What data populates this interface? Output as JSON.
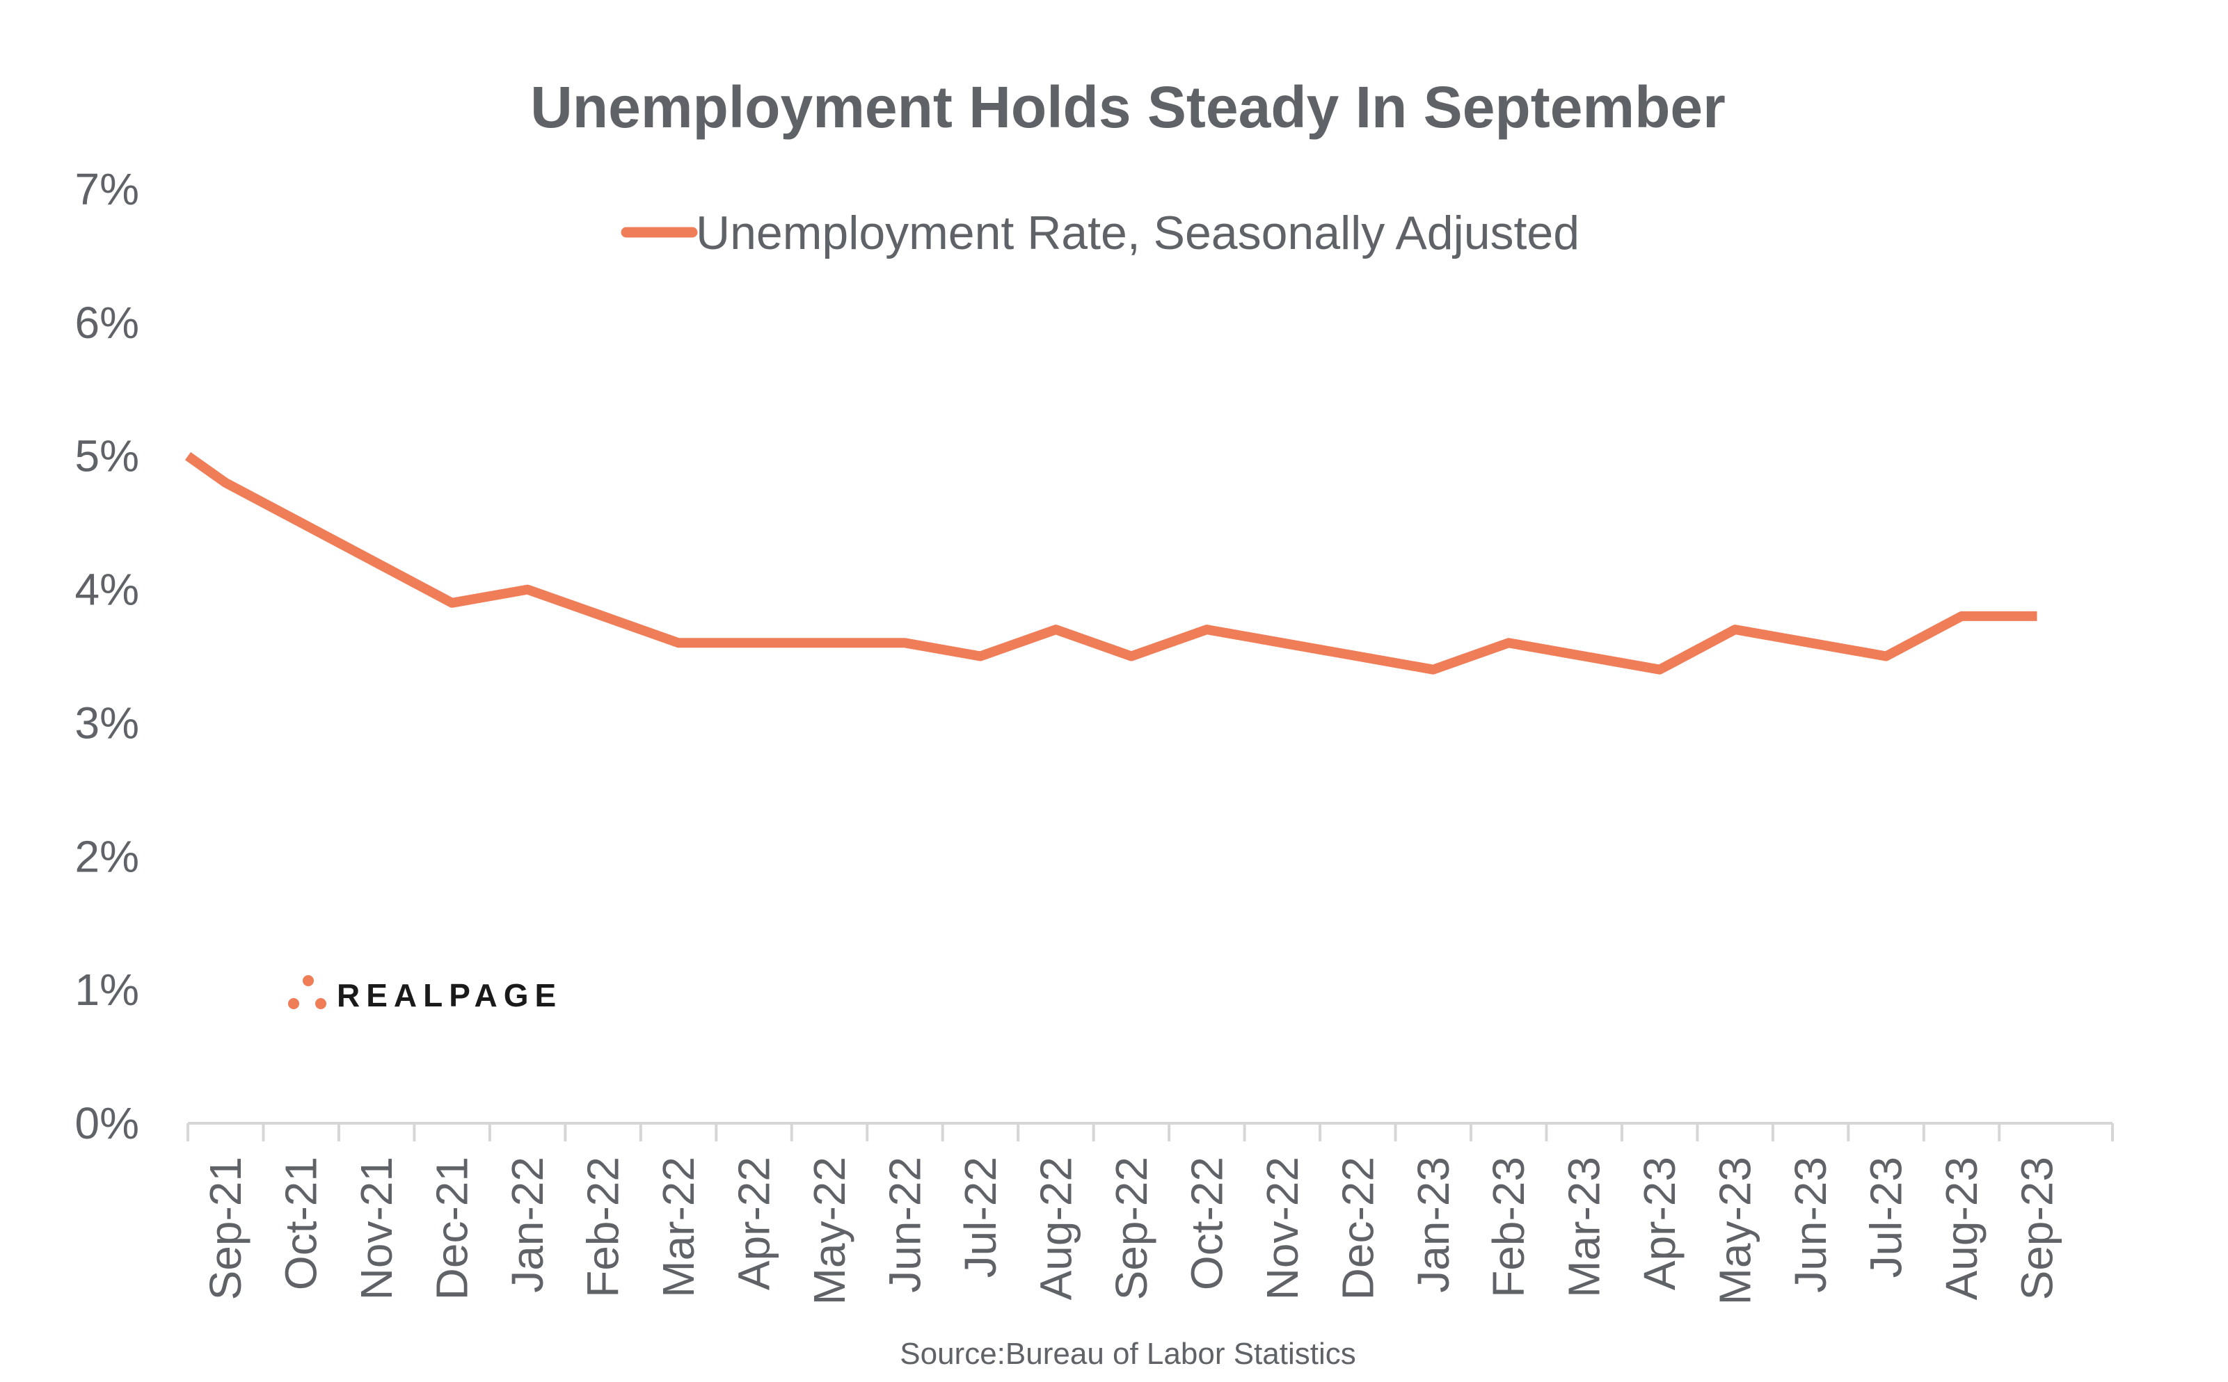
{
  "colors": {
    "series": "#ef7d57",
    "text": "#5f6266",
    "axis": "#d6d6d6",
    "logo_text": "#1a1a1a"
  },
  "logo": {
    "text": "REALPAGE"
  },
  "source": "Source:Bureau of Labor Statistics",
  "chart_data": {
    "type": "line",
    "title": "Unemployment Holds Steady In September",
    "xlabel": "",
    "ylabel": "",
    "ylim": [
      0,
      7
    ],
    "yticks": [
      0,
      1,
      2,
      3,
      4,
      5,
      6,
      7
    ],
    "ytick_labels": [
      "0%",
      "1%",
      "2%",
      "3%",
      "4%",
      "5%",
      "6%",
      "7%"
    ],
    "grid": false,
    "legend_position": "top-center",
    "categories": [
      "Sep-21",
      "Oct-21",
      "Nov-21",
      "Dec-21",
      "Jan-22",
      "Feb-22",
      "Mar-22",
      "Apr-22",
      "May-22",
      "Jun-22",
      "Jul-22",
      "Aug-22",
      "Sep-22",
      "Oct-22",
      "Nov-22",
      "Dec-22",
      "Jan-23",
      "Feb-23",
      "Mar-23",
      "Apr-23",
      "May-23",
      "Jun-23",
      "Jul-23",
      "Aug-23",
      "Sep-23"
    ],
    "series": [
      {
        "name": "Unemployment Rate, Seasonally Adjusted",
        "x": [
          0.0,
          0.5,
          1.5,
          2.5,
          3.5,
          4.5,
          5.5,
          6.5,
          7.5,
          8.5,
          9.5,
          10.5,
          11.5,
          12.5,
          13.5,
          14.5,
          15.5,
          16.5,
          17.5,
          18.5,
          19.5,
          20.5,
          21.5,
          22.5,
          23.5,
          24.5
        ],
        "values": [
          5.0,
          4.8,
          4.5,
          4.2,
          3.9,
          4.0,
          3.8,
          3.6,
          3.6,
          3.6,
          3.6,
          3.5,
          3.7,
          3.5,
          3.7,
          3.6,
          3.5,
          3.4,
          3.6,
          3.5,
          3.4,
          3.7,
          3.6,
          3.5,
          3.8,
          3.8
        ]
      }
    ]
  }
}
